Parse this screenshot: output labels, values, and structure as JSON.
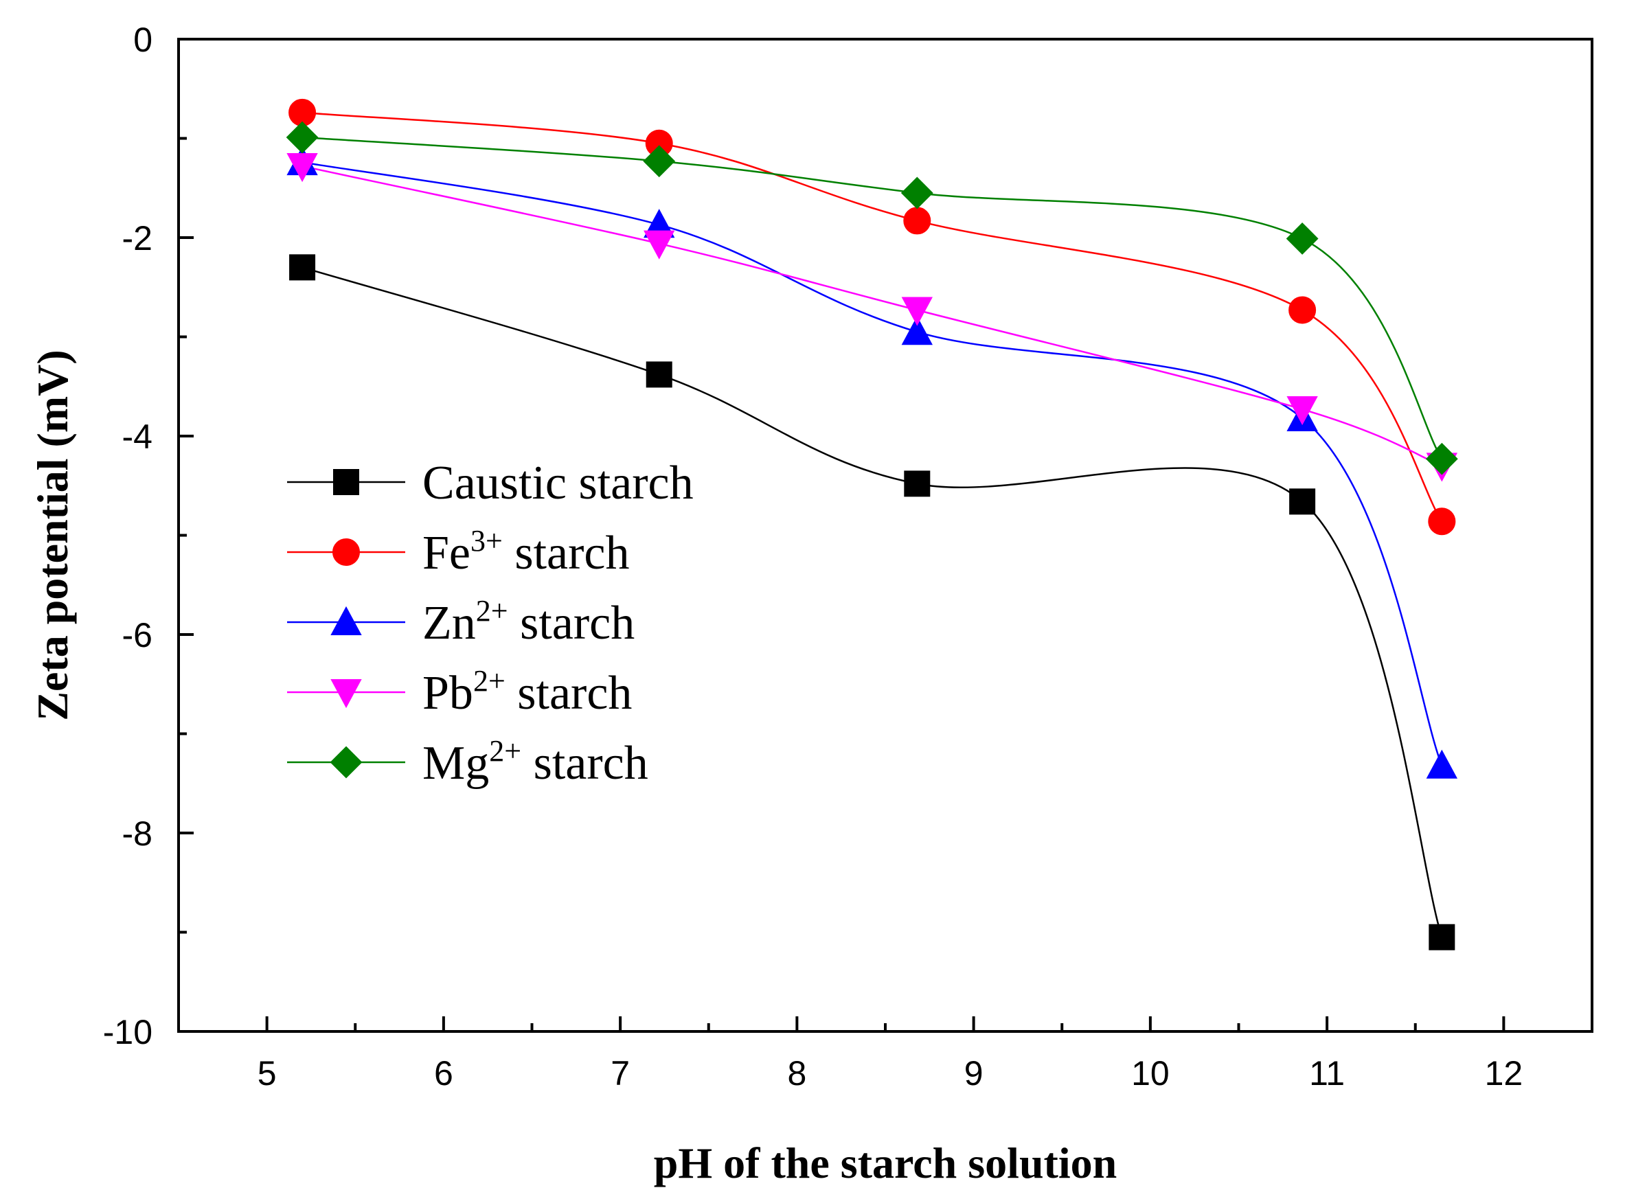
{
  "chart_data": {
    "type": "line",
    "xlabel": "pH of the starch solution",
    "ylabel": "Zeta potential (mV)",
    "xlim": [
      4.5,
      12.5
    ],
    "ylim": [
      -10,
      0
    ],
    "xticks": [
      5,
      6,
      7,
      8,
      9,
      10,
      11,
      12
    ],
    "yticks": [
      0,
      -2,
      -4,
      -6,
      -8,
      -10
    ],
    "grid": false,
    "legend_position": "left-middle",
    "series": [
      {
        "name": "Caustic starch",
        "label_base": "Caustic",
        "label_sup": "",
        "label_rest": " starch",
        "color": "#000000",
        "marker": "square",
        "x": [
          5.2,
          7.22,
          8.68,
          10.86,
          11.65
        ],
        "y": [
          -2.3,
          -3.38,
          -4.48,
          -4.66,
          -9.05
        ]
      },
      {
        "name": "Fe3+ starch",
        "label_base": "Fe",
        "label_sup": "3+",
        "label_rest": " starch",
        "color": "#ff0000",
        "marker": "circle",
        "x": [
          5.2,
          7.22,
          8.68,
          10.86,
          11.65
        ],
        "y": [
          -0.74,
          -1.05,
          -1.83,
          -2.73,
          -4.86
        ]
      },
      {
        "name": "Zn2+ starch",
        "label_base": "Zn",
        "label_sup": "2+",
        "label_rest": " starch",
        "color": "#0000ff",
        "marker": "triangle-up",
        "x": [
          5.2,
          7.22,
          8.68,
          10.86,
          11.65
        ],
        "y": [
          -1.24,
          -1.87,
          -2.95,
          -3.82,
          -7.32
        ]
      },
      {
        "name": "Pb2+ starch",
        "label_base": "Pb",
        "label_sup": "2+",
        "label_rest": " starch",
        "color": "#ff00ff",
        "marker": "triangle-down",
        "x": [
          5.2,
          7.22,
          8.68,
          10.86,
          11.65
        ],
        "y": [
          -1.28,
          -2.06,
          -2.73,
          -3.73,
          -4.3
        ]
      },
      {
        "name": "Mg2+ starch",
        "label_base": "Mg",
        "label_sup": "2+",
        "label_rest": " starch",
        "color": "#008000",
        "marker": "diamond",
        "x": [
          5.2,
          7.22,
          8.68,
          10.86,
          11.65
        ],
        "y": [
          -0.99,
          -1.23,
          -1.55,
          -2.01,
          -4.23
        ]
      }
    ]
  }
}
